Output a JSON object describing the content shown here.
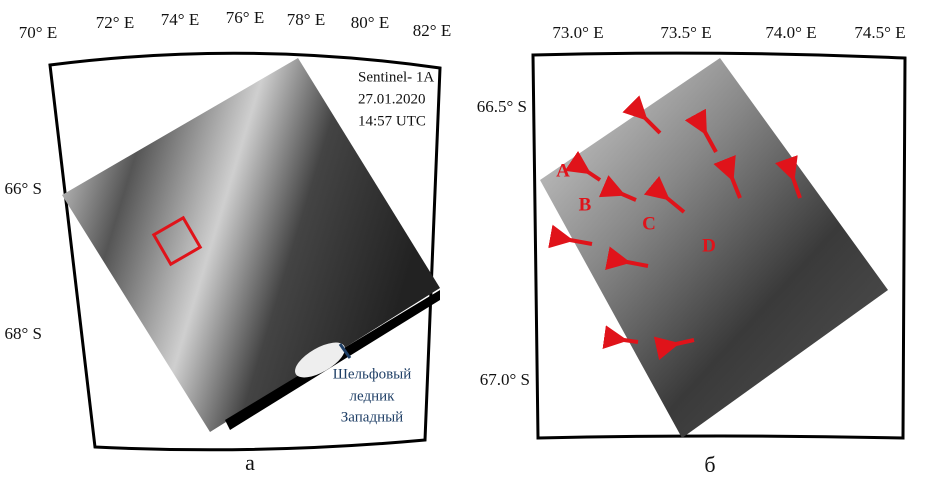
{
  "panels": [
    {
      "caption": "а",
      "lon_labels": [
        "70° E",
        "72° E",
        "74° E",
        "76° E",
        "78° E",
        "80° E",
        "82° E"
      ],
      "lat_labels": [
        "66° S",
        "68° S"
      ],
      "annotation": [
        "Sentinel- 1A",
        "27.01.2020",
        "14:57 UTC"
      ],
      "glacier_label": [
        "Шельфовый",
        "ледник",
        "Западный"
      ]
    },
    {
      "caption": "б",
      "lon_labels": [
        "73.0° E",
        "73.5° E",
        "74.0° E",
        "74.5° E"
      ],
      "lat_labels": [
        "66.5° S",
        "67.0° S"
      ],
      "markers": [
        "A",
        "B",
        "C",
        "D"
      ]
    }
  ]
}
